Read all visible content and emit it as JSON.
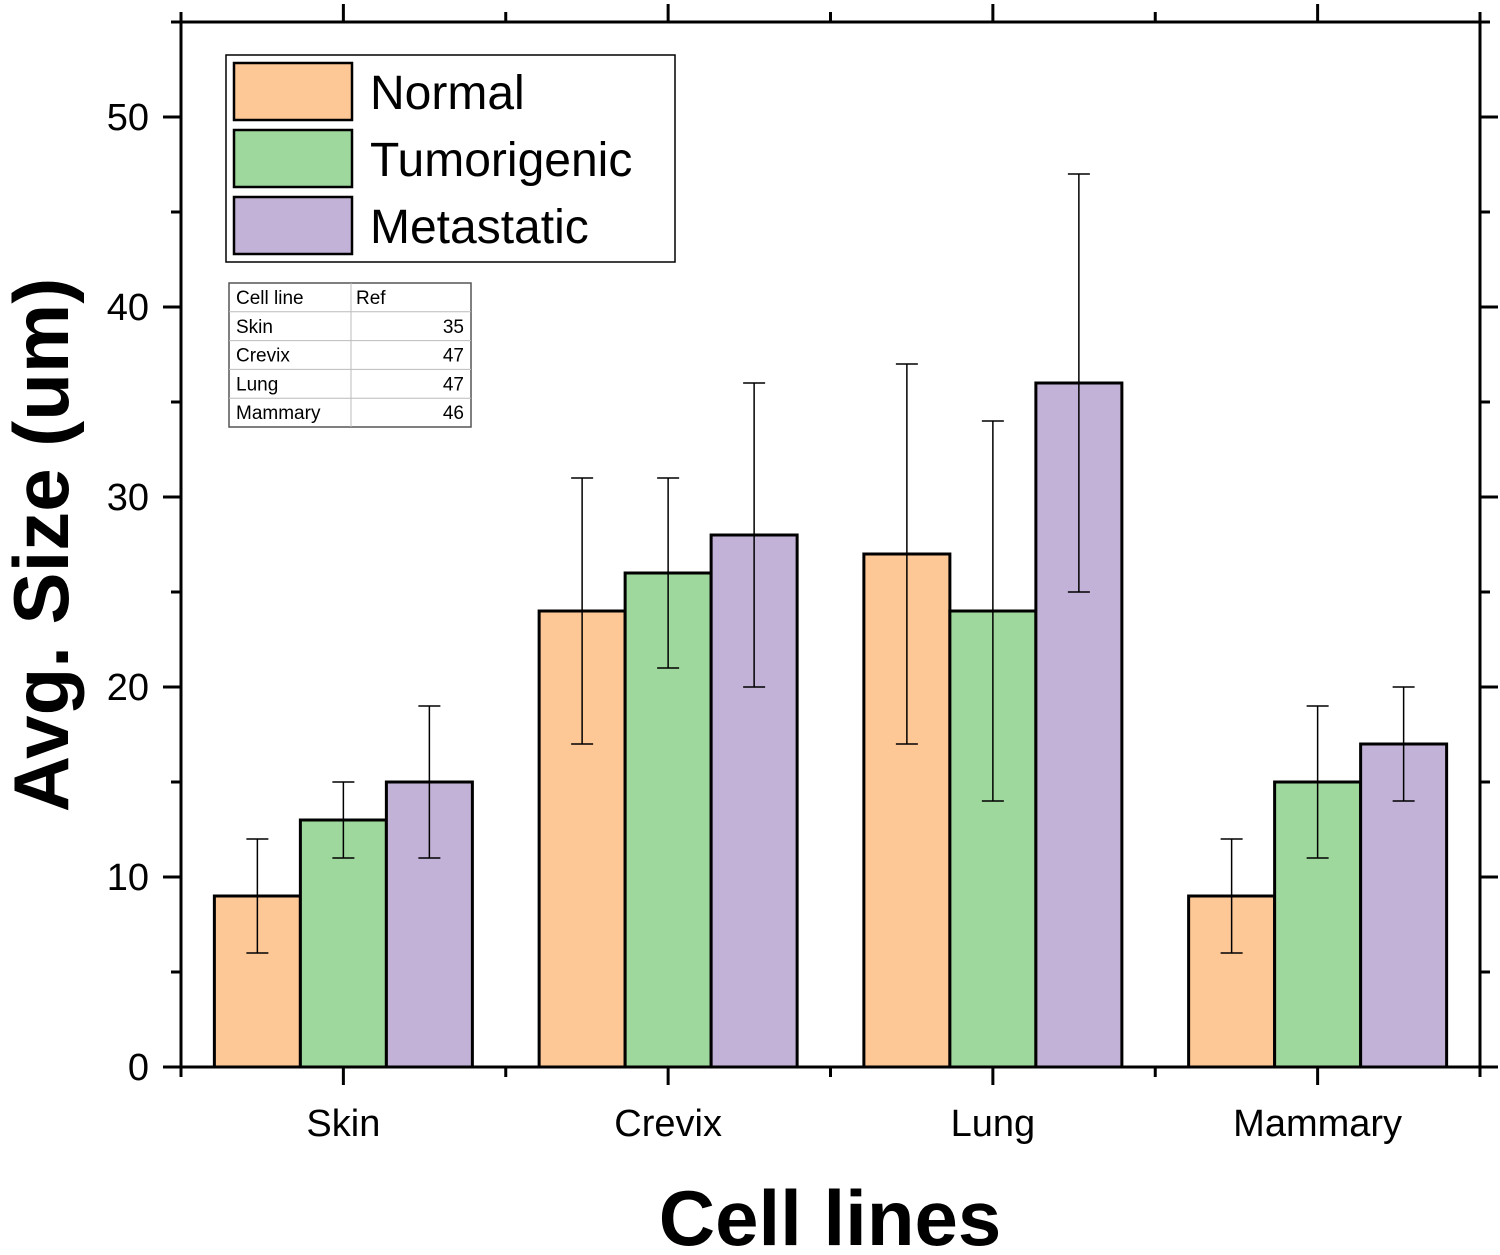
{
  "chart_data": {
    "type": "bar",
    "title": "",
    "xlabel": "Cell lines",
    "ylabel": "Avg. Size (um)",
    "ylim": [
      0,
      55
    ],
    "yticks": [
      0,
      10,
      20,
      30,
      40,
      50
    ],
    "categories": [
      "Skin",
      "Crevix",
      "Lung",
      "Mammary"
    ],
    "series": [
      {
        "name": "Normal",
        "color": "#fec796",
        "values": [
          9,
          24,
          27,
          9
        ],
        "err_low": [
          6,
          17,
          17,
          6
        ],
        "err_high": [
          12,
          31,
          37,
          12
        ]
      },
      {
        "name": "Tumorigenic",
        "color": "#9ed89c",
        "values": [
          13,
          26,
          24,
          15
        ],
        "err_low": [
          11,
          21,
          14,
          11
        ],
        "err_high": [
          15,
          31,
          34,
          19
        ]
      },
      {
        "name": "Metastatic",
        "color": "#c3b2d7",
        "values": [
          15,
          28,
          36,
          17
        ],
        "err_low": [
          11,
          20,
          25,
          14
        ],
        "err_high": [
          19,
          36,
          47,
          20
        ]
      }
    ],
    "legend": {
      "placement": "top-left"
    },
    "grid": false,
    "inset_table": {
      "headers": [
        "Cell line",
        "Ref"
      ],
      "rows": [
        [
          "Skin",
          "35"
        ],
        [
          "Crevix",
          "47"
        ],
        [
          "Lung",
          "47"
        ],
        [
          "Mammary",
          "46"
        ]
      ]
    }
  }
}
